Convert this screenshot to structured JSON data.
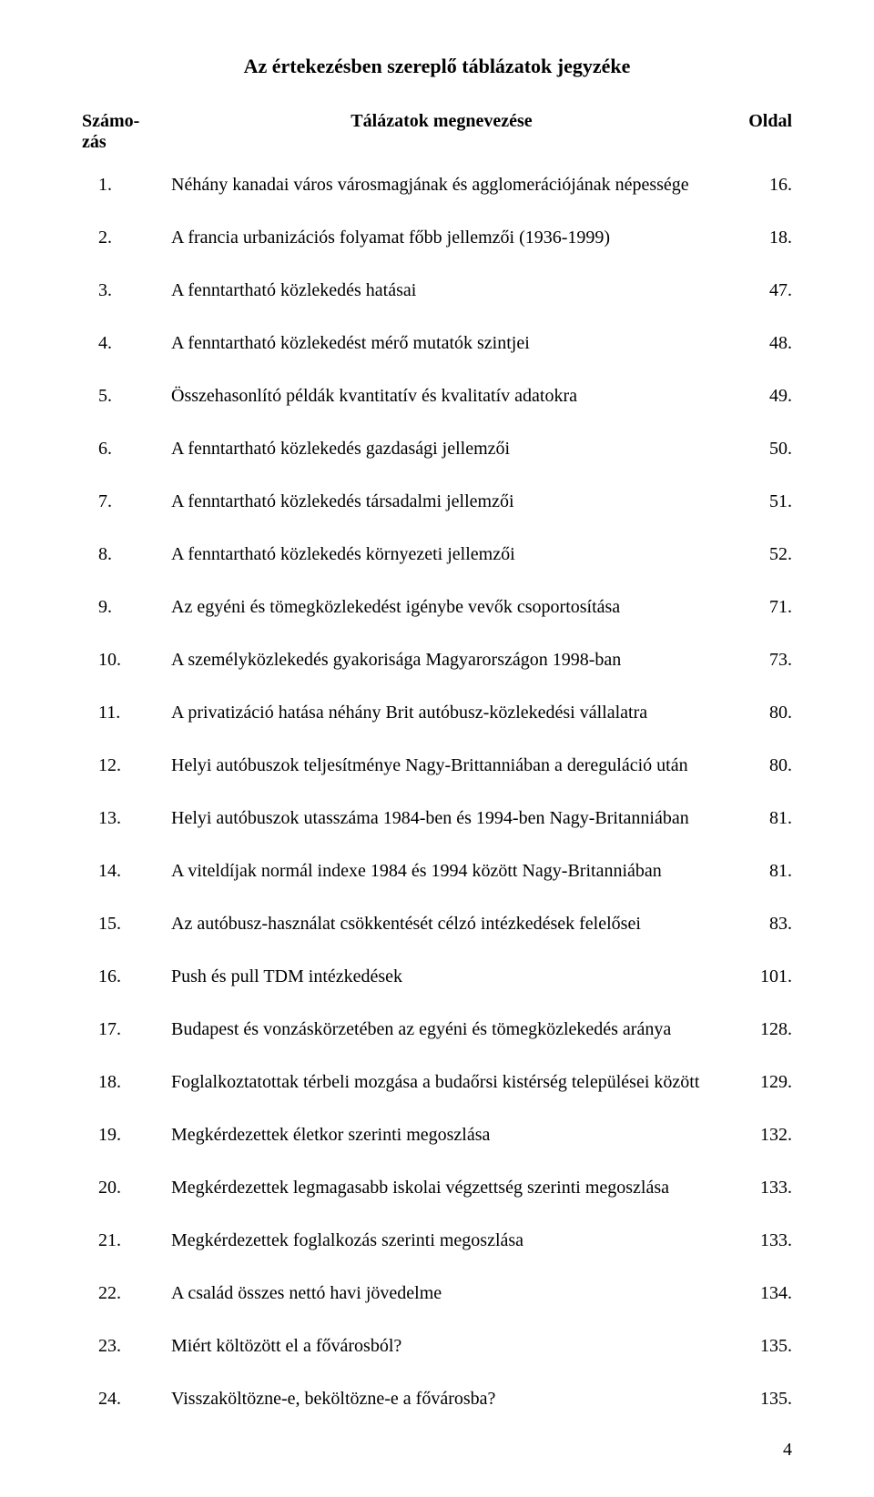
{
  "title": "Az értekezésben szereplő táblázatok jegyzéke",
  "header": {
    "col_num_line1": "Számo-",
    "col_num_line2": "zás",
    "col_name": "Tálázatok megnevezése",
    "col_page": "Oldal"
  },
  "rows": [
    {
      "num": "1.",
      "name": "Néhány kanadai város városmagjának és agglomerációjának népessége",
      "page": "16."
    },
    {
      "num": "2.",
      "name": "A francia urbanizációs folyamat főbb jellemzői (1936-1999)",
      "page": "18."
    },
    {
      "num": "3.",
      "name": "A fenntartható közlekedés hatásai",
      "page": "47."
    },
    {
      "num": "4.",
      "name": "A fenntartható közlekedést mérő mutatók szintjei",
      "page": "48."
    },
    {
      "num": "5.",
      "name": "Összehasonlító példák kvantitatív és kvalitatív adatokra",
      "page": "49."
    },
    {
      "num": "6.",
      "name": "A fenntartható közlekedés gazdasági jellemzői",
      "page": "50."
    },
    {
      "num": "7.",
      "name": "A fenntartható közlekedés társadalmi jellemzői",
      "page": "51."
    },
    {
      "num": "8.",
      "name": "A fenntartható közlekedés környezeti jellemzői",
      "page": "52."
    },
    {
      "num": "9.",
      "name": "Az egyéni és tömegközlekedést igénybe vevők csoportosítása",
      "page": "71."
    },
    {
      "num": "10.",
      "name": "A személyközlekedés gyakorisága Magyarországon 1998-ban",
      "page": "73."
    },
    {
      "num": "11.",
      "name": "A privatizáció hatása néhány Brit autóbusz-közlekedési vállalatra",
      "page": "80."
    },
    {
      "num": "12.",
      "name": "Helyi autóbuszok teljesítménye Nagy-Brittanniában a dereguláció után",
      "page": "80."
    },
    {
      "num": "13.",
      "name": "Helyi autóbuszok utasszáma 1984-ben és 1994-ben Nagy-Britanniában",
      "page": "81."
    },
    {
      "num": "14.",
      "name": "A viteldíjak normál indexe 1984 és 1994 között Nagy-Britanniában",
      "page": "81."
    },
    {
      "num": "15.",
      "name": "Az autóbusz-használat csökkentését célzó intézkedések felelősei",
      "page": "83."
    },
    {
      "num": "16.",
      "name": "Push és pull TDM intézkedések",
      "page": "101."
    },
    {
      "num": "17.",
      "name": "Budapest és vonzáskörzetében az egyéni és tömegközlekedés aránya",
      "page": "128."
    },
    {
      "num": "18.",
      "name": "Foglalkoztatottak térbeli mozgása a budaőrsi kistérség települései között",
      "page": "129."
    },
    {
      "num": "19.",
      "name": "Megkérdezettek életkor szerinti megoszlása",
      "page": "132."
    },
    {
      "num": "20.",
      "name": "Megkérdezettek legmagasabb iskolai végzettség szerinti megoszlása",
      "page": "133."
    },
    {
      "num": "21.",
      "name": "Megkérdezettek foglalkozás szerinti megoszlása",
      "page": "133."
    },
    {
      "num": "22.",
      "name": "A család összes nettó havi jövedelme",
      "page": "134."
    },
    {
      "num": "23.",
      "name": "Miért költözött el a fővárosból?",
      "page": "135."
    },
    {
      "num": "24.",
      "name": "Visszaköltözne-e, beköltözne-e a fővárosba?",
      "page": "135."
    }
  ],
  "page_number": "4"
}
